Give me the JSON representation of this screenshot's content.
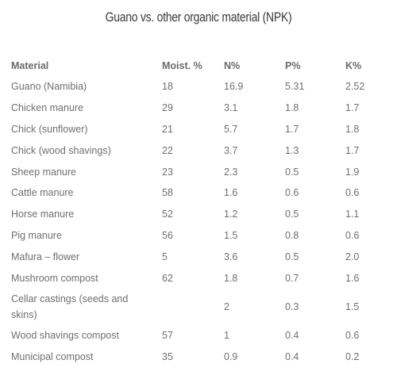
{
  "title": "Guano vs. other organic material (NPK)",
  "table": {
    "headers": [
      "Material",
      "Moist. %",
      "N%",
      "P%",
      "K%"
    ],
    "rows": [
      [
        "Guano (Namibia)",
        "18",
        "16.9",
        "5.31",
        "2.52"
      ],
      [
        "Chicken manure",
        "29",
        "3.1",
        "1.8",
        "1.7"
      ],
      [
        "Chick (sunflower)",
        "21",
        "5.7",
        "1.7",
        "1.8"
      ],
      [
        "Chick (wood shavings)",
        "22",
        "3.7",
        "1.3",
        "1.7"
      ],
      [
        "Sheep manure",
        "23",
        "2.3",
        "0.5",
        "1.9"
      ],
      [
        "Cattle manure",
        "58",
        "1.6",
        "0.6",
        "0.6"
      ],
      [
        "Horse manure",
        "52",
        "1.2",
        "0.5",
        "1.1"
      ],
      [
        "Pig manure",
        "56",
        "1.5",
        "0.8",
        "0.6"
      ],
      [
        "Mafura – flower",
        "5",
        "3.6",
        "0.5",
        "2.0"
      ],
      [
        "Mushroom compost",
        "62",
        "1.8",
        "0.7",
        "1.6"
      ],
      [
        "Cellar castings (seeds and skins)",
        "",
        "2",
        "0.3",
        "1.5"
      ],
      [
        "Wood shavings compost",
        "57",
        "1",
        "0.4",
        "0.6"
      ],
      [
        "Municipal compost",
        "35",
        "0.9",
        "0.4",
        "0.2"
      ]
    ]
  }
}
